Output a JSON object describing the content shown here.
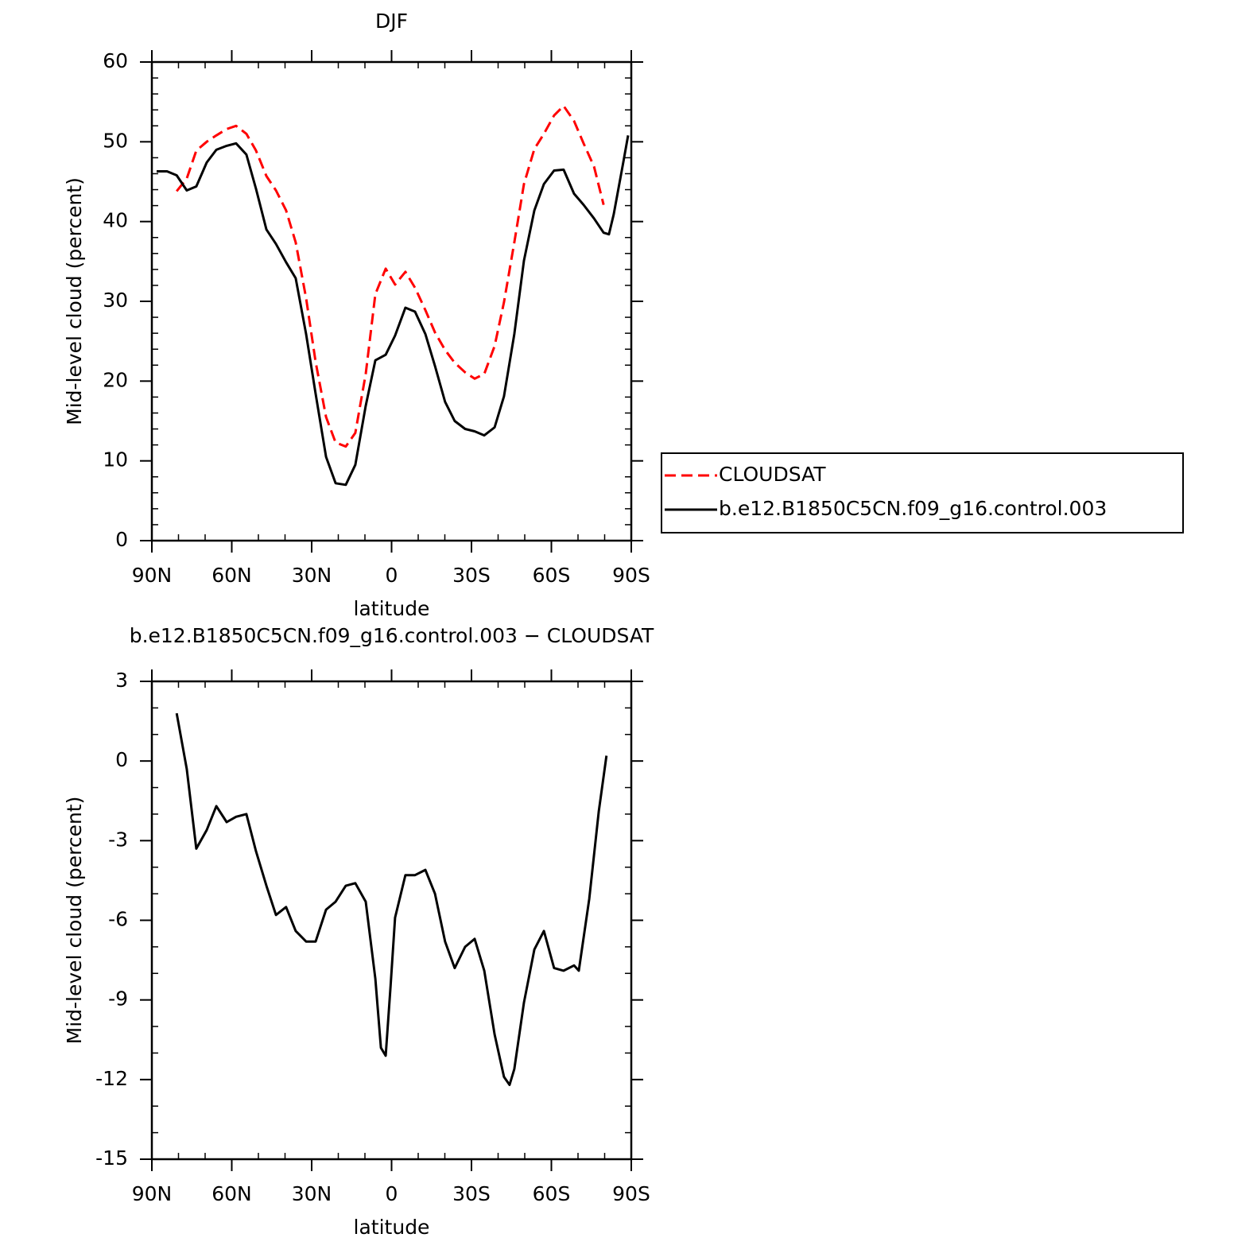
{
  "chart_data": [
    {
      "type": "line",
      "title": "DJF",
      "xlabel": "latitude",
      "ylabel": "Mid-level cloud (percent)",
      "x": [
        88.2,
        84.3,
        80.7,
        76.9,
        73.3,
        69.4,
        65.8,
        61.9,
        58.4,
        54.5,
        50.9,
        47.0,
        43.4,
        39.6,
        36.0,
        32.1,
        28.5,
        24.6,
        21.0,
        17.2,
        13.6,
        9.7,
        6.1,
        2.2,
        -1.3,
        -5.2,
        -8.8,
        -12.7,
        -16.3,
        -20.1,
        -23.7,
        -27.6,
        -31.2,
        -34.8,
        -38.7,
        -42.2,
        -46.1,
        -49.7,
        -53.6,
        -57.2,
        -61.0,
        -64.6,
        -68.5,
        -72.1,
        -76.0,
        -79.6,
        -81.6,
        -83.4,
        -87.0,
        -88.8
      ],
      "series": [
        {
          "name": "CLOUDSAT",
          "color": "#ff0000",
          "linestyle": "dashed",
          "values": [
            null,
            null,
            43.8,
            45.4,
            48.9,
            50.0,
            50.8,
            51.6,
            52.0,
            51.0,
            48.9,
            45.7,
            43.9,
            41.4,
            37.4,
            30.4,
            22.4,
            15.5,
            12.3,
            11.8,
            13.5,
            20.9,
            30.9,
            34.1,
            32.1,
            33.7,
            31.7,
            28.9,
            26.1,
            23.9,
            22.3,
            21.1,
            20.3,
            20.9,
            24.4,
            29.9,
            37.4,
            44.7,
            49.1,
            51.0,
            53.3,
            54.5,
            52.6,
            49.8,
            46.9,
            42.1,
            null,
            null,
            null,
            null
          ]
        },
        {
          "name": "b.e12.B1850C5CN.f09_g16.control.003",
          "color": "#000000",
          "linestyle": "solid",
          "values": [
            46.3,
            46.3,
            45.8,
            43.9,
            44.4,
            47.4,
            49.0,
            49.5,
            49.8,
            48.4,
            44.1,
            39.0,
            37.2,
            34.9,
            32.9,
            25.9,
            18.4,
            10.5,
            7.2,
            7.0,
            9.5,
            16.9,
            22.6,
            23.3,
            25.7,
            29.2,
            28.7,
            25.9,
            21.9,
            17.4,
            15.0,
            14.0,
            13.7,
            13.2,
            14.2,
            18.1,
            25.9,
            35.1,
            41.4,
            44.7,
            46.4,
            46.5,
            43.5,
            42.1,
            40.4,
            38.6,
            38.4,
            40.9,
            47.4,
            50.8
          ]
        }
      ],
      "xlim": [
        90,
        -90
      ],
      "xticks": [
        {
          "value": 90,
          "label": "90N"
        },
        {
          "value": 60,
          "label": "60N"
        },
        {
          "value": 30,
          "label": "30N"
        },
        0,
        {
          "value": -30,
          "label": "30S"
        },
        {
          "value": -60,
          "label": "60S"
        },
        {
          "value": -90,
          "label": "90S"
        }
      ],
      "ylim": [
        0,
        60
      ],
      "yticks": [
        0,
        10,
        20,
        30,
        40,
        50,
        60
      ],
      "legend": "right"
    },
    {
      "type": "line",
      "title": "b.e12.B1850C5CN.f09_g16.control.003 − CLOUDSAT",
      "xlabel": "latitude",
      "ylabel": "Mid-level cloud (percent)",
      "x": [
        80.7,
        76.9,
        73.3,
        69.4,
        65.8,
        61.9,
        58.4,
        54.5,
        50.9,
        47.0,
        43.4,
        39.6,
        36.0,
        32.1,
        28.5,
        24.6,
        21.0,
        17.2,
        13.6,
        9.7,
        6.1,
        4.0,
        2.2,
        0.4,
        -1.3,
        -5.2,
        -8.8,
        -12.7,
        -16.3,
        -20.1,
        -23.7,
        -27.6,
        -31.2,
        -34.8,
        -38.7,
        -42.2,
        -44.3,
        -46.1,
        -49.7,
        -53.6,
        -57.2,
        -61.0,
        -64.6,
        -68.5,
        -70.3,
        -74.2,
        -77.8,
        -80.7
      ],
      "series": [
        {
          "color": "#000000",
          "linestyle": "solid",
          "values": [
            1.8,
            -0.3,
            -3.3,
            -2.6,
            -1.7,
            -2.3,
            -2.1,
            -2.0,
            -3.4,
            -4.7,
            -5.8,
            -5.5,
            -6.4,
            -6.8,
            -6.8,
            -5.6,
            -5.3,
            -4.7,
            -4.6,
            -5.3,
            -8.2,
            -10.8,
            -11.1,
            -8.5,
            -5.9,
            -4.3,
            -4.3,
            -4.1,
            -5.0,
            -6.8,
            -7.8,
            -7.0,
            -6.7,
            -7.9,
            -10.3,
            -11.9,
            -12.2,
            -11.6,
            -9.1,
            -7.1,
            -6.4,
            -7.8,
            -7.9,
            -7.7,
            -7.9,
            -5.2,
            -1.9,
            0.2
          ]
        }
      ],
      "xlim": [
        90,
        -90
      ],
      "xticks": [
        {
          "value": 90,
          "label": "90N"
        },
        {
          "value": 60,
          "label": "60N"
        },
        {
          "value": 30,
          "label": "30N"
        },
        0,
        {
          "value": -30,
          "label": "30S"
        },
        {
          "value": -60,
          "label": "60S"
        },
        {
          "value": -90,
          "label": "90S"
        }
      ],
      "ylim": [
        -15,
        3
      ],
      "yticks": [
        -15,
        -12,
        -9,
        -6,
        -3,
        0,
        3
      ]
    }
  ]
}
